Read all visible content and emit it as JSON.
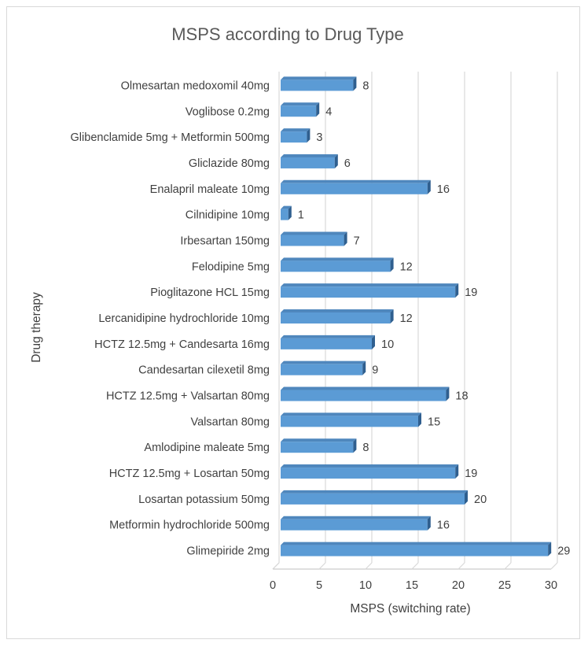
{
  "chart_data": {
    "type": "bar",
    "orientation": "horizontal",
    "style": "3d-clustered-bar",
    "title": "MSPS according to Drug Type",
    "xlabel": "MSPS (switching rate)",
    "ylabel": "Drug therapy",
    "xlim": [
      0,
      30
    ],
    "xticks": [
      0,
      5,
      10,
      15,
      20,
      25,
      30
    ],
    "grid": true,
    "legend": "none",
    "bar_color": "#5b9bd5",
    "categories": [
      "Olmesartan medoxomil 40mg",
      "Voglibose 0.2mg",
      "Glibenclamide 5mg + Metformin 500mg",
      "Gliclazide 80mg",
      "Enalapril maleate 10mg",
      "Cilnidipine 10mg",
      "Irbesartan 150mg",
      "Felodipine 5mg",
      "Pioglitazone HCL 15mg",
      "Lercanidipine hydrochloride 10mg",
      "HCTZ 12.5mg + Candesarta 16mg",
      "Candesartan cilexetil 8mg",
      "HCTZ 12.5mg + Valsartan 80mg",
      "Valsartan 80mg",
      "Amlodipine maleate 5mg",
      "HCTZ 12.5mg + Losartan 50mg",
      "Losartan potassium 50mg",
      "Metformin hydrochloride 500mg",
      "Glimepiride 2mg"
    ],
    "values": [
      8,
      4,
      3,
      6,
      16,
      1,
      7,
      12,
      19,
      12,
      10,
      9,
      18,
      15,
      8,
      19,
      20,
      16,
      29
    ]
  }
}
